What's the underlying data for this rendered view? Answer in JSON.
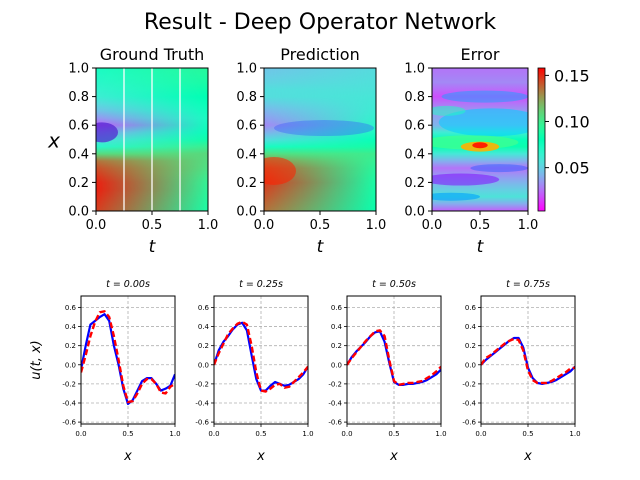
{
  "figure": {
    "title": "Result - Deep Operator Network"
  },
  "heatmaps": [
    {
      "title": "Ground Truth",
      "xlabel": "t",
      "ylabel": "x",
      "xticks": [
        "0.0",
        "0.5",
        "1.0"
      ],
      "yticks": [
        "0.0",
        "0.2",
        "0.4",
        "0.6",
        "0.8",
        "1.0"
      ],
      "slice_lines": [
        0.25,
        0.5,
        0.75
      ]
    },
    {
      "title": "Prediction",
      "xlabel": "t",
      "ylabel": "",
      "xticks": [
        "0.0",
        "0.5",
        "1.0"
      ],
      "yticks": [
        "0.0",
        "0.2",
        "0.4",
        "0.6",
        "0.8",
        "1.0"
      ]
    },
    {
      "title": "Error",
      "xlabel": "t",
      "ylabel": "",
      "xticks": [
        "0.0",
        "0.5",
        "1.0"
      ],
      "yticks": [
        "0.0",
        "0.2",
        "0.4",
        "0.6",
        "0.8",
        "1.0"
      ]
    }
  ],
  "colorbar": {
    "ticks": [
      "0.05",
      "0.10",
      "0.15"
    ],
    "range": [
      0.003,
      0.158
    ],
    "colormap": "rainbow"
  },
  "slice_plots": {
    "ylabel": "u(t, x)",
    "xlabel": "x",
    "xticks": [
      "0.0",
      "0.5",
      "1.0"
    ],
    "yticks": [
      "0.6",
      "0.4",
      "0.2",
      "0.0",
      "-0.2",
      "-0.4",
      "-0.6"
    ],
    "titles": [
      "t = 0.00s",
      "t = 0.25s",
      "t = 0.50s",
      "t = 0.75s"
    ]
  },
  "chart_data": [
    {
      "type": "heatmap",
      "title": "Ground Truth",
      "x_range": [
        0,
        1
      ],
      "y_range": [
        0,
        1
      ],
      "colormap": "rainbow",
      "description_of_field": "high values in x 0.0-0.4, low band near x 0.5-0.6, moderate above"
    },
    {
      "type": "heatmap",
      "title": "Prediction",
      "x_range": [
        0,
        1
      ],
      "y_range": [
        0,
        1
      ],
      "colormap": "rainbow"
    },
    {
      "type": "heatmap",
      "title": "Error",
      "x_range": [
        0,
        1
      ],
      "y_range": [
        0,
        1
      ],
      "colormap": "rainbow",
      "color_range": [
        0.003,
        0.158
      ]
    },
    {
      "type": "line",
      "title": "t = 0.00s",
      "xlim": [
        0,
        1
      ],
      "ylim": [
        -0.62,
        0.72
      ],
      "x": [
        0.0,
        0.05,
        0.1,
        0.15,
        0.2,
        0.25,
        0.3,
        0.35,
        0.4,
        0.45,
        0.5,
        0.55,
        0.6,
        0.65,
        0.7,
        0.75,
        0.8,
        0.85,
        0.9,
        0.95,
        1.0
      ],
      "series": [
        {
          "name": "truth",
          "color": "#0000ff",
          "values": [
            -0.05,
            0.2,
            0.42,
            0.46,
            0.5,
            0.53,
            0.46,
            0.2,
            0.0,
            -0.25,
            -0.41,
            -0.37,
            -0.27,
            -0.17,
            -0.14,
            -0.14,
            -0.2,
            -0.27,
            -0.25,
            -0.22,
            -0.1
          ]
        },
        {
          "name": "prediction",
          "color": "#ff0000",
          "values": [
            -0.08,
            0.1,
            0.3,
            0.45,
            0.55,
            0.56,
            0.5,
            0.3,
            0.05,
            -0.22,
            -0.39,
            -0.38,
            -0.3,
            -0.2,
            -0.15,
            -0.15,
            -0.2,
            -0.29,
            -0.3,
            -0.23,
            -0.2
          ]
        }
      ]
    },
    {
      "type": "line",
      "title": "t = 0.25s",
      "xlim": [
        0,
        1
      ],
      "ylim": [
        -0.62,
        0.72
      ],
      "x": [
        0.0,
        0.05,
        0.1,
        0.15,
        0.2,
        0.25,
        0.3,
        0.35,
        0.4,
        0.45,
        0.5,
        0.55,
        0.6,
        0.65,
        0.7,
        0.75,
        0.8,
        0.85,
        0.9,
        0.95,
        1.0
      ],
      "series": [
        {
          "name": "truth",
          "color": "#0000ff",
          "values": [
            0.0,
            0.15,
            0.24,
            0.3,
            0.37,
            0.42,
            0.44,
            0.36,
            0.1,
            -0.15,
            -0.27,
            -0.27,
            -0.22,
            -0.18,
            -0.2,
            -0.22,
            -0.21,
            -0.18,
            -0.15,
            -0.1,
            -0.02
          ]
        },
        {
          "name": "prediction",
          "color": "#ff0000",
          "values": [
            0.0,
            0.12,
            0.22,
            0.32,
            0.38,
            0.43,
            0.45,
            0.42,
            0.2,
            -0.08,
            -0.27,
            -0.28,
            -0.25,
            -0.21,
            -0.2,
            -0.24,
            -0.23,
            -0.18,
            -0.13,
            -0.08,
            -0.02
          ]
        }
      ]
    },
    {
      "type": "line",
      "title": "t = 0.50s",
      "xlim": [
        0,
        1
      ],
      "ylim": [
        -0.62,
        0.72
      ],
      "x": [
        0.0,
        0.05,
        0.1,
        0.15,
        0.2,
        0.25,
        0.3,
        0.35,
        0.4,
        0.45,
        0.5,
        0.55,
        0.6,
        0.65,
        0.7,
        0.75,
        0.8,
        0.85,
        0.9,
        0.95,
        1.0
      ],
      "series": [
        {
          "name": "truth",
          "color": "#0000ff",
          "values": [
            0.0,
            0.08,
            0.14,
            0.19,
            0.24,
            0.3,
            0.34,
            0.35,
            0.24,
            0.02,
            -0.18,
            -0.21,
            -0.21,
            -0.2,
            -0.2,
            -0.19,
            -0.18,
            -0.16,
            -0.13,
            -0.1,
            -0.05
          ]
        },
        {
          "name": "prediction",
          "color": "#ff0000",
          "values": [
            0.0,
            0.07,
            0.13,
            0.19,
            0.25,
            0.3,
            0.35,
            0.36,
            0.3,
            0.05,
            -0.17,
            -0.21,
            -0.2,
            -0.19,
            -0.19,
            -0.18,
            -0.17,
            -0.14,
            -0.11,
            -0.07,
            -0.02
          ]
        }
      ]
    },
    {
      "type": "line",
      "title": "t = 0.75s",
      "xlim": [
        0,
        1
      ],
      "ylim": [
        -0.62,
        0.72
      ],
      "x": [
        0.0,
        0.05,
        0.1,
        0.15,
        0.2,
        0.25,
        0.3,
        0.35,
        0.4,
        0.45,
        0.5,
        0.55,
        0.6,
        0.65,
        0.7,
        0.75,
        0.8,
        0.85,
        0.9,
        0.95,
        1.0
      ],
      "series": [
        {
          "name": "truth",
          "color": "#0000ff",
          "values": [
            0.0,
            0.05,
            0.09,
            0.13,
            0.17,
            0.21,
            0.25,
            0.28,
            0.28,
            0.18,
            -0.03,
            -0.14,
            -0.19,
            -0.2,
            -0.19,
            -0.18,
            -0.16,
            -0.13,
            -0.1,
            -0.07,
            -0.02
          ]
        },
        {
          "name": "prediction",
          "color": "#ff0000",
          "values": [
            0.0,
            0.07,
            0.1,
            0.14,
            0.18,
            0.22,
            0.25,
            0.27,
            0.26,
            0.15,
            -0.06,
            -0.16,
            -0.19,
            -0.19,
            -0.19,
            -0.17,
            -0.14,
            -0.11,
            -0.08,
            -0.04,
            -0.03
          ]
        }
      ]
    }
  ]
}
